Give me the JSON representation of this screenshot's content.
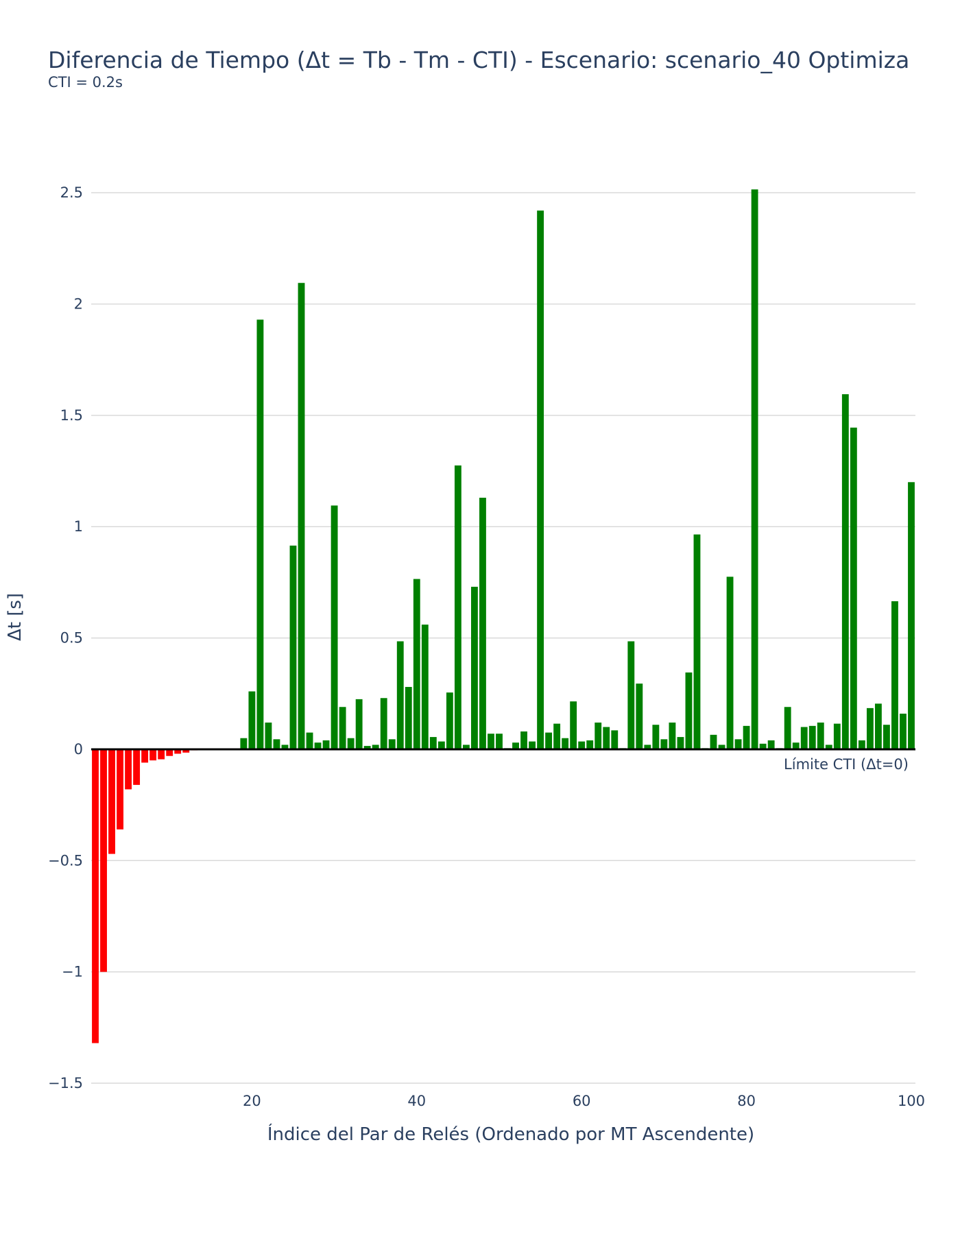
{
  "chart_data": {
    "type": "bar",
    "title": "Diferencia de Tiempo (Δt = Tb - Tm - CTI) - Escenario: scenario_40 Optimiza",
    "subtitle": "CTI = 0.2s",
    "xlabel": "Índice del Par de Relés (Ordenado por MT Ascendente)",
    "ylabel": "Δt [s]",
    "xlim": [
      0.5,
      100.5
    ],
    "ylim": [
      -1.5,
      2.75
    ],
    "xticks": [
      20,
      40,
      60,
      80,
      100
    ],
    "yticks": [
      -1.5,
      -1,
      -0.5,
      0,
      0.5,
      1,
      1.5,
      2,
      2.5
    ],
    "ytick_labels": [
      "−1.5",
      "−1",
      "−0.5",
      "0",
      "0.5",
      "1",
      "1.5",
      "2",
      "2.5"
    ],
    "xtick_labels": [
      "20",
      "40",
      "60",
      "80",
      "100"
    ],
    "grid": true,
    "reference_line": {
      "y": 0,
      "label": "Límite CTI (Δt=0)"
    },
    "colors": {
      "negative": "#ff0000",
      "positive": "#008000",
      "grid": "#d9d9d9",
      "zero_line": "#000000",
      "text": "#2a3f5f"
    },
    "x": [
      1,
      2,
      3,
      4,
      5,
      6,
      7,
      8,
      9,
      10,
      11,
      12,
      13,
      14,
      15,
      16,
      17,
      18,
      19,
      20,
      21,
      22,
      23,
      24,
      25,
      26,
      27,
      28,
      29,
      30,
      31,
      32,
      33,
      34,
      35,
      36,
      37,
      38,
      39,
      40,
      41,
      42,
      43,
      44,
      45,
      46,
      47,
      48,
      49,
      50,
      51,
      52,
      53,
      54,
      55,
      56,
      57,
      58,
      59,
      60,
      61,
      62,
      63,
      64,
      65,
      66,
      67,
      68,
      69,
      70,
      71,
      72,
      73,
      74,
      75,
      76,
      77,
      78,
      79,
      80,
      81,
      82,
      83,
      84,
      85,
      86,
      87,
      88,
      89,
      90,
      91,
      92,
      93,
      94,
      95,
      96,
      97,
      98,
      99,
      100
    ],
    "values": [
      -1.32,
      -1.0,
      -0.47,
      -0.36,
      -0.18,
      -0.16,
      -0.06,
      -0.05,
      -0.045,
      -0.03,
      -0.02,
      -0.015,
      -0.005,
      -0.003,
      -0.003,
      -0.002,
      -0.002,
      -0.002,
      0.05,
      0.26,
      1.93,
      0.12,
      0.045,
      0.02,
      0.915,
      2.095,
      0.075,
      0.03,
      0.04,
      1.095,
      0.19,
      0.05,
      0.225,
      0.015,
      0.02,
      0.23,
      0.045,
      0.485,
      0.28,
      0.765,
      0.56,
      0.055,
      0.035,
      0.255,
      1.275,
      0.02,
      0.73,
      1.13,
      0.07,
      0.07,
      0.005,
      0.03,
      0.08,
      0.035,
      2.42,
      0.075,
      0.115,
      0.05,
      0.215,
      0.035,
      0.04,
      0.12,
      0.1,
      0.085,
      0.005,
      0.485,
      0.295,
      0.02,
      0.11,
      0.045,
      0.12,
      0.055,
      0.345,
      0.965,
      0.005,
      0.065,
      0.02,
      0.775,
      0.045,
      0.105,
      2.515,
      0.025,
      0.04,
      0.005,
      0.19,
      0.03,
      0.1,
      0.105,
      0.12,
      0.02,
      0.115,
      1.595,
      1.445,
      0.04,
      0.185,
      0.205,
      0.11,
      0.665,
      0.16,
      1.2
    ]
  }
}
